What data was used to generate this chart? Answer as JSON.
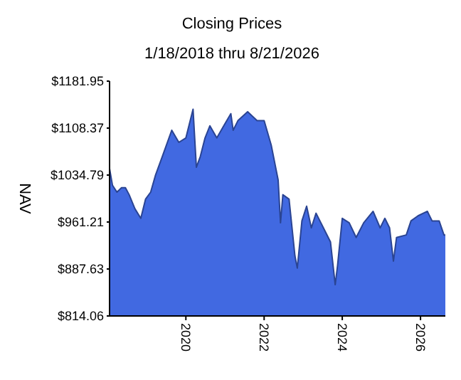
{
  "chart_data": {
    "type": "area",
    "title": "Closing Prices",
    "subtitle": "1/18/2018 thru 8/21/2026",
    "ylabel": "NAV",
    "x": [
      "2018-01-18",
      "2018-02-14",
      "2018-03-28",
      "2018-05-10",
      "2018-06-15",
      "2018-07-20",
      "2018-09-12",
      "2018-11-06",
      "2018-12-20",
      "2019-02-06",
      "2019-03-22",
      "2019-05-26",
      "2019-08-22",
      "2019-10-27",
      "2020-01-01",
      "2020-03-08",
      "2020-04-08",
      "2020-05-15",
      "2020-06-28",
      "2020-08-12",
      "2020-10-16",
      "2020-12-20",
      "2021-02-24",
      "2021-03-18",
      "2021-05-01",
      "2021-07-31",
      "2021-10-27",
      "2022-01-01",
      "2022-03-08",
      "2022-05-12",
      "2022-06-03",
      "2022-06-25",
      "2022-08-22",
      "2022-10-16",
      "2022-11-07",
      "2022-12-20",
      "2023-02-02",
      "2023-03-18",
      "2023-05-01",
      "2023-07-09",
      "2023-09-13",
      "2023-10-27",
      "2023-11-18",
      "2024-01-01",
      "2024-03-06",
      "2024-05-10",
      "2024-07-19",
      "2024-10-15",
      "2024-12-20",
      "2025-02-02",
      "2025-03-18",
      "2025-04-23",
      "2025-05-22",
      "2025-08-21",
      "2025-10-04",
      "2025-12-09",
      "2026-03-06",
      "2026-04-19",
      "2026-06-24",
      "2026-08-08",
      "2026-08-21"
    ],
    "series": [
      {
        "color": "#4169e1",
        "values": [
          1045,
          1019,
          1008,
          1015,
          1015,
          1004,
          982,
          967,
          997,
          1008,
          1034,
          1064,
          1105,
          1086,
          1093,
          1138,
          1047,
          1064,
          1093,
          1112,
          1093,
          1112,
          1131,
          1105,
          1120,
          1134,
          1120,
          1120,
          1082,
          1027,
          960,
          1004,
          997,
          908,
          889,
          963,
          986,
          952,
          975,
          952,
          930,
          863,
          893,
          967,
          960,
          937,
          960,
          978,
          952,
          967,
          952,
          900,
          937,
          941,
          963,
          971,
          978,
          963,
          963,
          941,
          941
        ]
      }
    ],
    "xlim": [
      "2018-01-18",
      "2026-08-21"
    ],
    "xticks": [
      {
        "value": "2020-01-01",
        "label": "2020"
      },
      {
        "value": "2022-01-01",
        "label": "2022"
      },
      {
        "value": "2024-01-01",
        "label": "2024"
      },
      {
        "value": "2026-01-01",
        "label": "2026"
      }
    ],
    "ylim": [
      814.06,
      1181.95
    ],
    "yticks": [
      {
        "value": 814.06,
        "label": "$814.06"
      },
      {
        "value": 887.63,
        "label": "$887.63"
      },
      {
        "value": 961.21,
        "label": "$961.21"
      },
      {
        "value": 1034.79,
        "label": "$1034.79"
      },
      {
        "value": 1108.37,
        "label": "$1108.37"
      },
      {
        "value": 1181.95,
        "label": "$1181.95"
      }
    ],
    "grid": false
  }
}
